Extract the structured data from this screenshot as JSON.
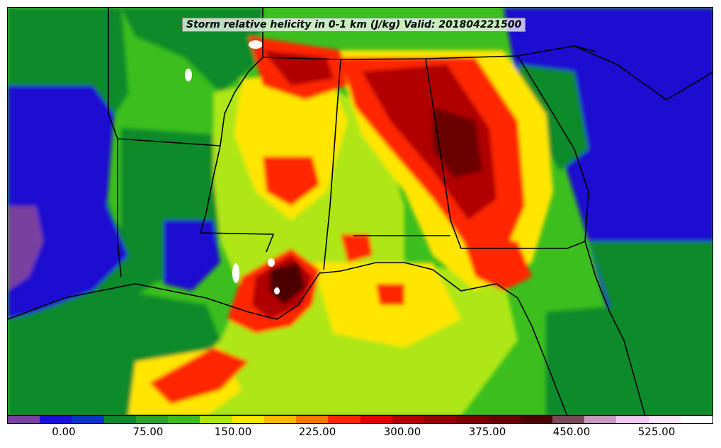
{
  "title": "Storm relative helicity in 0-1 km (J/kg) Valid: 201804221500",
  "colorbar": {
    "colors": [
      "#7a3fa0",
      "#1c0fd0",
      "#0a35c8",
      "#0a8a2a",
      "#2aa52a",
      "#3cbe1e",
      "#aee614",
      "#ffe600",
      "#ffb800",
      "#ff7800",
      "#ff2800",
      "#e00000",
      "#b00000",
      "#980000",
      "#800000",
      "#6a0000",
      "#4c0000",
      "#7a4a5a",
      "#c99ac0",
      "#f0c8f0",
      "#fbe6fb",
      "#ffffff"
    ],
    "tick_labels": [
      "0.00",
      "75.00",
      "150.00",
      "225.00",
      "300.00",
      "375.00",
      "450.00",
      "525.00"
    ]
  },
  "field_colors": {
    "very_low": "#1c0fd0",
    "low": "#0a8a2a",
    "mid_low": "#3cbe1e",
    "mid": "#aee614",
    "mid_high": "#ffe600",
    "high": "#ff2800",
    "very_high": "#b00000",
    "extreme": "#4c0000",
    "max": "#ffffff",
    "purple": "#7a3fa0"
  }
}
